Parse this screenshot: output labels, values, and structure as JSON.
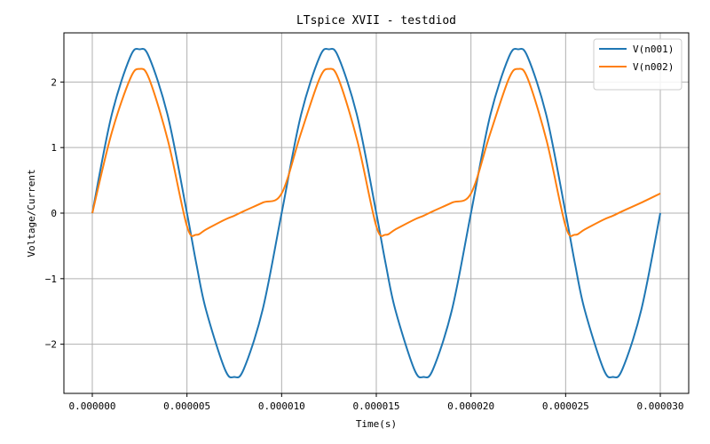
{
  "chart_data": {
    "type": "line",
    "title": "LTspice XVII - testdiod",
    "xlabel": "Time(s)",
    "ylabel": "Voltage/Current",
    "xlim": [
      -1.5e-06,
      3.15e-05
    ],
    "ylim": [
      -2.75,
      2.75
    ],
    "grid": true,
    "legend_position": "top-right",
    "xticks": [
      0.0,
      5e-06,
      1e-05,
      1.5e-05,
      2e-05,
      2.5e-05,
      3e-05
    ],
    "xtick_labels": [
      "0.000000",
      "0.000005",
      "0.000010",
      "0.000015",
      "0.000020",
      "0.000025",
      "0.000030"
    ],
    "yticks": [
      -2,
      -1,
      0,
      1,
      2
    ],
    "ytick_labels": [
      "−2",
      "−1",
      "0",
      "1",
      "2"
    ],
    "x": [
      0.0,
      1e-06,
      2e-06,
      2.5e-06,
      3e-06,
      4e-06,
      5e-06,
      5.5e-06,
      6e-06,
      7e-06,
      7.5e-06,
      8e-06,
      9e-06,
      1e-05,
      1.1e-05,
      1.2e-05,
      1.25e-05,
      1.3e-05,
      1.4e-05,
      1.5e-05,
      1.55e-05,
      1.6e-05,
      1.7e-05,
      1.75e-05,
      1.8e-05,
      1.9e-05,
      2e-05,
      2.1e-05,
      2.2e-05,
      2.25e-05,
      2.3e-05,
      2.4e-05,
      2.5e-05,
      2.55e-05,
      2.6e-05,
      2.7e-05,
      2.75e-05,
      2.8e-05,
      2.9e-05,
      3e-05
    ],
    "series": [
      {
        "name": "V(n001)",
        "color": "#1f77b4",
        "values": [
          0.0,
          1.47,
          2.38,
          2.5,
          2.38,
          1.47,
          0.0,
          -0.78,
          -1.47,
          -2.38,
          -2.5,
          -2.38,
          -1.47,
          0.0,
          1.47,
          2.38,
          2.5,
          2.38,
          1.47,
          0.0,
          -0.78,
          -1.47,
          -2.38,
          -2.5,
          -2.38,
          -1.47,
          0.0,
          1.47,
          2.38,
          2.5,
          2.38,
          1.47,
          0.0,
          -0.78,
          -1.47,
          -2.38,
          -2.5,
          -2.38,
          -1.47,
          0.0
        ]
      },
      {
        "name": "V(n002)",
        "color": "#ff7f0e",
        "values": [
          0.0,
          1.2,
          2.05,
          2.2,
          2.05,
          1.1,
          -0.2,
          -0.33,
          -0.25,
          -0.1,
          -0.04,
          0.03,
          0.16,
          0.3,
          1.2,
          2.05,
          2.2,
          2.05,
          1.1,
          -0.2,
          -0.33,
          -0.25,
          -0.1,
          -0.04,
          0.03,
          0.16,
          0.3,
          1.2,
          2.05,
          2.2,
          2.05,
          1.1,
          -0.2,
          -0.33,
          -0.25,
          -0.1,
          -0.04,
          0.03,
          0.16,
          0.3
        ]
      }
    ]
  }
}
